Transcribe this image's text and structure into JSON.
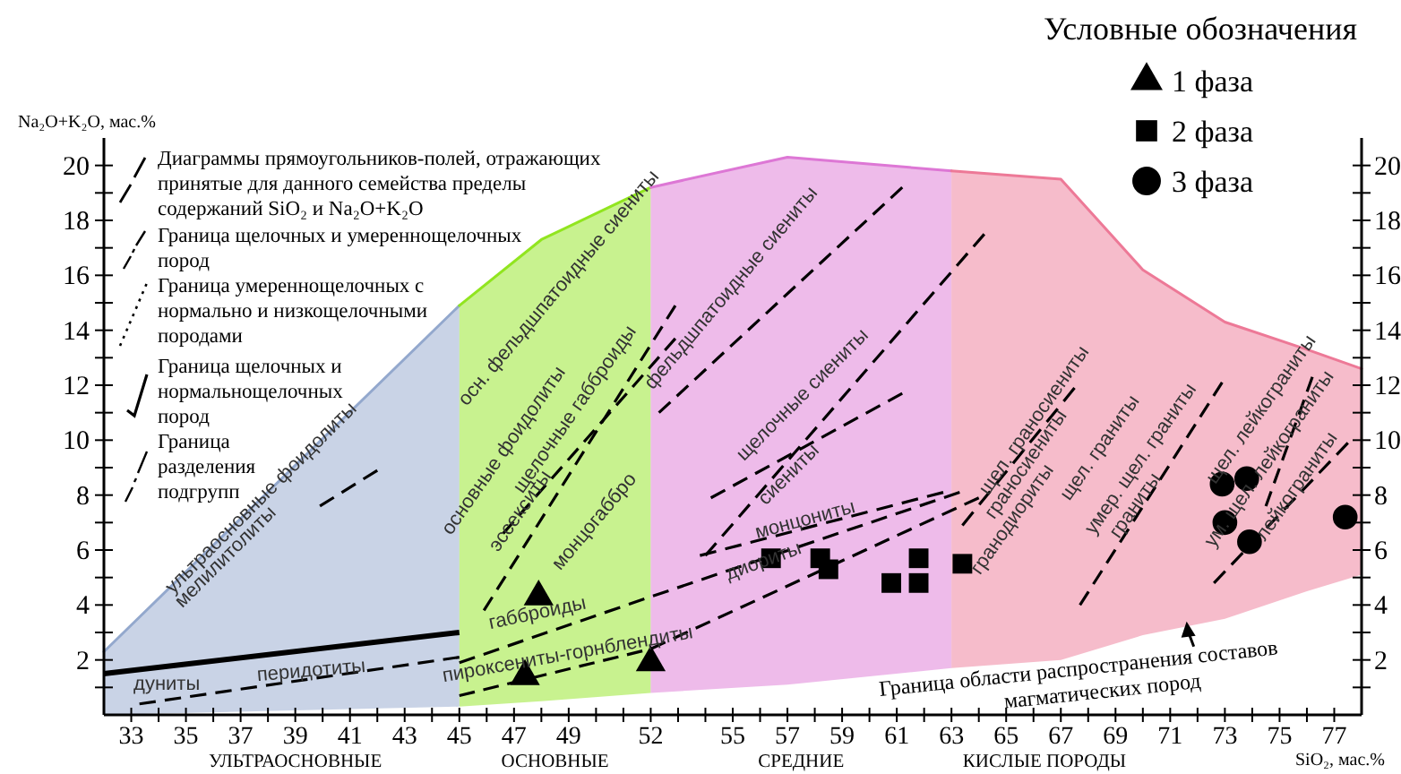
{
  "chart_data": {
    "type": "scatter",
    "xlabel": "SiO₂, мас.%",
    "ylabel": "Na₂O+K₂O, мас.%",
    "legend_title": "Условные обозначения",
    "legend": "top right",
    "xlim": [
      32,
      78
    ],
    "ylim": [
      0,
      21
    ],
    "y2lim": [
      0,
      21
    ],
    "xticks": [
      33,
      {
        "value": 34,
        "label": null
      },
      35,
      {
        "value": 36,
        "label": null
      },
      37,
      {
        "value": 38,
        "label": null
      },
      39,
      {
        "value": 40,
        "label": null
      },
      41,
      {
        "value": 42,
        "label": null
      },
      43,
      {
        "value": 44,
        "label": null
      },
      45,
      {
        "value": 46,
        "label": null
      },
      47,
      {
        "value": 48,
        "label": null
      },
      49,
      {
        "value": 50,
        "label": null
      },
      {
        "value": 51,
        "label": null
      },
      52,
      {
        "value": 53,
        "label": null
      },
      {
        "value": 54,
        "label": null
      },
      55,
      {
        "value": 56,
        "label": null
      },
      57,
      {
        "value": 58,
        "label": null
      },
      59,
      {
        "value": 60,
        "label": null
      },
      61,
      {
        "value": 62,
        "label": null
      },
      63,
      {
        "value": 64,
        "label": null
      },
      65,
      {
        "value": 66,
        "label": null
      },
      67,
      {
        "value": 68,
        "label": null
      },
      69,
      {
        "value": 70,
        "label": null
      },
      71,
      {
        "value": 72,
        "label": null
      },
      73,
      {
        "value": 74,
        "label": null
      },
      75,
      {
        "value": 76,
        "label": null
      },
      77
    ],
    "yticks": [
      {
        "value": 1,
        "label": null
      },
      2,
      {
        "value": 3,
        "label": null
      },
      4,
      {
        "value": 5,
        "label": null
      },
      6,
      {
        "value": 7,
        "label": null
      },
      8,
      {
        "value": 9,
        "label": null
      },
      10,
      {
        "value": 11,
        "label": null
      },
      12,
      {
        "value": 13,
        "label": null
      },
      14,
      {
        "value": 15,
        "label": null
      },
      16,
      {
        "value": 17,
        "label": null
      },
      18,
      {
        "value": 19,
        "label": null
      },
      20
    ],
    "y2ticks": [
      {
        "value": 1,
        "label": null
      },
      2,
      {
        "value": 3,
        "label": null
      },
      4,
      {
        "value": 5,
        "label": null
      },
      6,
      {
        "value": 7,
        "label": null
      },
      8,
      {
        "value": 9,
        "label": null
      },
      10,
      {
        "value": 11,
        "label": null
      },
      12,
      {
        "value": 13,
        "label": null
      },
      14,
      {
        "value": 15,
        "label": null
      },
      16,
      {
        "value": 17,
        "label": null
      },
      18,
      {
        "value": 19,
        "label": null
      },
      20
    ],
    "series": [
      {
        "type": "line",
        "color": "#93a8cd",
        "x": [
          32,
          45
        ],
        "values": [
          2.3,
          14.9
        ],
        "lower": [
          0,
          0.3
        ],
        "upper": [
          2.3,
          14.9
        ]
      },
      {
        "type": "line",
        "color": "#91e51f",
        "x": [
          45,
          48,
          52
        ],
        "values": [
          14.9,
          17.3,
          19.2
        ],
        "lower": [
          0.3,
          0.5,
          0.8
        ],
        "upper": [
          14.9,
          17.3,
          19.2
        ]
      },
      {
        "type": "line",
        "color": "#dd77d5",
        "x": [
          52,
          57,
          63
        ],
        "values": [
          19.2,
          20.3,
          19.8
        ],
        "lower": [
          0.8,
          1.1,
          1.7
        ],
        "upper": [
          19.2,
          20.3,
          19.8
        ]
      },
      {
        "type": "line",
        "color": "#ed7997",
        "x": [
          63,
          67,
          70,
          73,
          76,
          78
        ],
        "values": [
          19.8,
          19.5,
          16.2,
          14.3,
          13.3,
          12.6
        ],
        "lower": [
          1.7,
          2.0,
          2.9,
          3.5,
          4.5,
          5.1
        ],
        "upper": [
          19.8,
          19.5,
          16.2,
          14.3,
          13.3,
          12.6
        ]
      },
      {
        "type": "line",
        "color": "#000000",
        "line_style": "solid",
        "x": [
          32,
          45
        ],
        "values": [
          1.5,
          3.0
        ]
      },
      {
        "type": "line",
        "color": "#000000",
        "line_style": "dashed",
        "x": [
          33.3,
          45
        ],
        "values": [
          0.4,
          2.1
        ]
      },
      {
        "type": "line",
        "color": "#000000",
        "line_style": "dashed",
        "x": [
          45,
          52,
          63.3
        ],
        "values": [
          1.9,
          4.3,
          8.1
        ]
      },
      {
        "type": "line",
        "color": "#000000",
        "line_style": "dashed",
        "x": [
          45,
          52,
          64
        ],
        "values": [
          0.7,
          2.4,
          7.9
        ]
      },
      {
        "type": "line",
        "color": "#000000",
        "line_style": "dashed",
        "x": [
          39.9,
          42
        ],
        "values": [
          7.6,
          8.9
        ]
      },
      {
        "type": "line",
        "color": "#000000",
        "line_style": "dashed",
        "x": [
          45.9,
          52.9
        ],
        "values": [
          3.8,
          14.9
        ]
      },
      {
        "type": "line",
        "color": "#000000",
        "line_style": "dashed",
        "x": [
          46.6,
          52.9
        ],
        "values": [
          6.6,
          13.7
        ]
      },
      {
        "type": "line",
        "color": "#000000",
        "line_style": "dashed",
        "x": [
          52.3,
          61.2
        ],
        "values": [
          11.0,
          19.2
        ]
      },
      {
        "type": "line",
        "color": "#000000",
        "line_style": "dashed",
        "x": [
          54,
          64.2
        ],
        "values": [
          5.8,
          17.5
        ]
      },
      {
        "type": "line",
        "color": "#000000",
        "line_style": "dashed",
        "x": [
          54.2,
          61.2
        ],
        "values": [
          7.9,
          11.7
        ]
      },
      {
        "type": "line",
        "color": "#000000",
        "line_style": "dashed",
        "x": [
          53.8,
          62.7
        ],
        "values": [
          5.8,
          8.1
        ]
      },
      {
        "type": "line",
        "color": "#000000",
        "line_style": "dashed",
        "x": [
          63.4,
          67.5
        ],
        "values": [
          6.9,
          11.9
        ]
      },
      {
        "type": "line",
        "color": "#000000",
        "line_style": "dashed",
        "x": [
          67.7,
          72.9
        ],
        "values": [
          4.0,
          12.1
        ]
      },
      {
        "type": "line",
        "color": "#000000",
        "line_style": "dashed",
        "x": [
          72.6,
          77.5
        ],
        "values": [
          4.8,
          9.9
        ]
      },
      {
        "type": "line",
        "color": "#000000",
        "line_style": "dashed",
        "x": [
          74.5,
          76.2
        ],
        "values": [
          7.6,
          12.3
        ]
      },
      {
        "name": "1 фаза",
        "color": "#000000",
        "marker": "triangle",
        "x": [
          47.4,
          47.9,
          52.0
        ],
        "values": [
          1.4,
          4.3,
          1.9
        ]
      },
      {
        "name": "2 фаза",
        "color": "#000000",
        "marker": "square",
        "x": [
          56.4,
          58.2,
          58.5,
          60.8,
          61.8,
          61.8,
          63.4
        ],
        "values": [
          5.7,
          5.7,
          5.3,
          4.8,
          5.7,
          4.8,
          5.5
        ]
      },
      {
        "name": "3 фаза",
        "color": "#000000",
        "marker": "circle",
        "x": [
          72.9,
          73.8,
          73.0,
          73.9,
          77.4
        ],
        "values": [
          8.4,
          8.6,
          7.0,
          6.3,
          7.2
        ]
      }
    ],
    "annotations": [
      "Диаграммы прямоугольников-полей, отражающих принятые для данного семейства пределы содержаний SiO₂ и Na₂O+K₂O",
      "Граница щелочных и умереннощелочных пород",
      "Граница умереннощелочных с нормально и низкощелочными породами",
      "Граница щелочных и нормальнощелочных пород",
      "Граница разделения подгрупп",
      "УЛЬТРАОСНОВНЫЕ",
      "ОСНОВНЫЕ",
      "СРЕДНИЕ",
      "КИСЛЫЕ ПОРОДЫ",
      "ультраосновные фоидолиты",
      "мелилитолиты",
      "перидотиты",
      "дуниты",
      "пироксениты-горнблендиты",
      "габброиды",
      "монцогаббро",
      "эссекситы",
      "щелочные габброиды",
      "основные фоидолиты",
      "осн. фельдшпатоидные сиениты",
      "фельдшпатоидные сиениты",
      "щелочные сиениты",
      "сиениты",
      "монцониты",
      "диориты",
      "щел. граносиениты",
      "граносиениты",
      "гранодиориты",
      "щел. граниты",
      "умер. щел. граниты",
      "граниты",
      "щел. лейкограниты",
      "ум. щел. лейкограниты",
      "лейкограниты",
      {
        "text": "Граница области распространения составов магматических пород",
        "x": 71.6,
        "y": 3.4
      }
    ]
  }
}
